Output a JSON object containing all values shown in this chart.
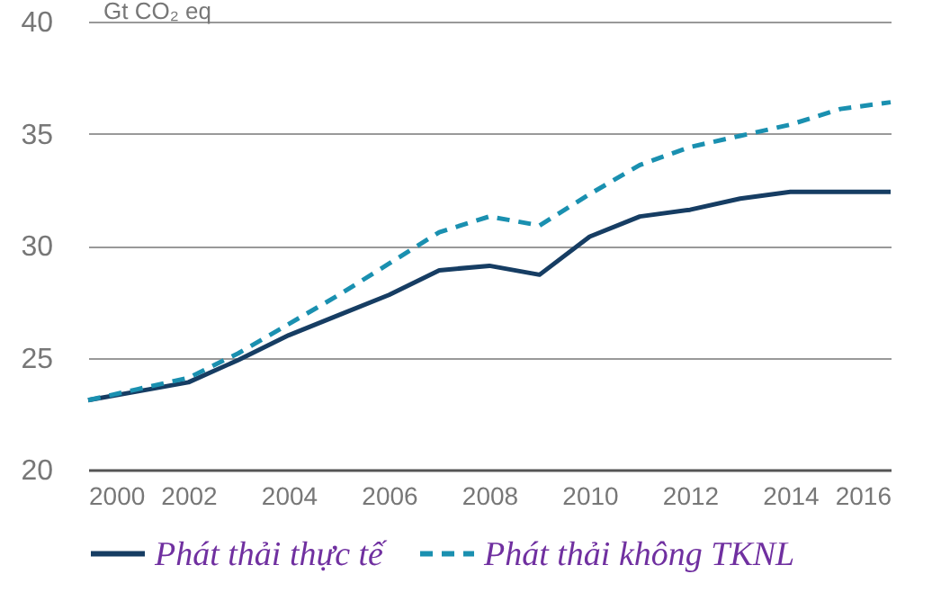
{
  "chart_data": {
    "type": "line",
    "ylabel": "Gt CO₂ eq",
    "x": [
      2000,
      2001,
      2002,
      2003,
      2004,
      2005,
      2006,
      2007,
      2008,
      2009,
      2010,
      2011,
      2012,
      2013,
      2014,
      2015,
      2016
    ],
    "series": [
      {
        "name": "Phát thải thực tế",
        "color": "#163d63",
        "line_style": "solid",
        "values": [
          23.1,
          23.5,
          23.9,
          24.9,
          26.0,
          26.9,
          27.8,
          28.9,
          29.1,
          28.7,
          30.4,
          31.3,
          31.6,
          32.1,
          32.4,
          32.4,
          32.4
        ]
      },
      {
        "name": "Phát thải không TKNL",
        "color": "#1a90b0",
        "line_style": "dashed",
        "values": [
          23.1,
          23.6,
          24.1,
          25.2,
          26.5,
          27.8,
          29.2,
          30.6,
          31.3,
          30.9,
          32.3,
          33.6,
          34.4,
          34.9,
          35.4,
          36.1,
          36.4
        ]
      }
    ],
    "xlim": [
      2000,
      2016
    ],
    "xticks": [
      2000,
      2002,
      2004,
      2006,
      2008,
      2010,
      2012,
      2014,
      2016
    ],
    "ylim": [
      20,
      40
    ],
    "yticks": [
      20,
      25,
      30,
      35,
      40
    ],
    "grid": "y",
    "legend": "bottom"
  }
}
